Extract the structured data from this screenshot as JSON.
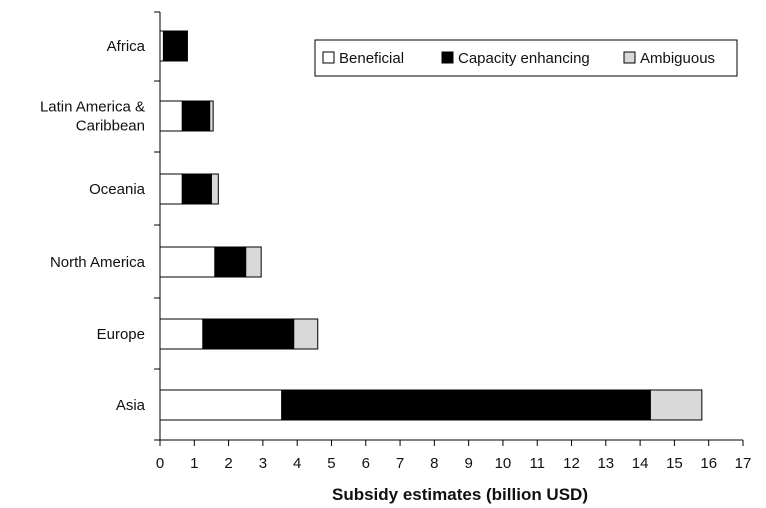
{
  "chart_data": {
    "type": "bar",
    "orientation": "horizontal",
    "stacked": true,
    "categories": [
      "Africa",
      "Latin America & Caribbean",
      "Oceania",
      "North America",
      "Europe",
      "Asia"
    ],
    "category_label_lines": [
      [
        "Africa"
      ],
      [
        "Latin America &",
        "Caribbean"
      ],
      [
        "Oceania"
      ],
      [
        "North America"
      ],
      [
        "Europe"
      ],
      [
        "Asia"
      ]
    ],
    "series": [
      {
        "name": "Beneficial",
        "values": [
          0.1,
          0.65,
          0.65,
          1.6,
          1.25,
          3.55
        ]
      },
      {
        "name": "Capacity enhancing",
        "values": [
          0.7,
          0.8,
          0.85,
          0.9,
          2.65,
          10.75
        ]
      },
      {
        "name": "Ambiguous",
        "values": [
          0.0,
          0.1,
          0.2,
          0.45,
          0.7,
          1.5
        ]
      }
    ],
    "colors": {
      "Beneficial": "#ffffff",
      "Capacity enhancing": "#000000",
      "Ambiguous": "#d9d9d9"
    },
    "xlabel": "Subsidy estimates (billion USD)",
    "ylabel": "",
    "xlim": [
      0,
      17
    ],
    "xticks": [
      0,
      1,
      2,
      3,
      4,
      5,
      6,
      7,
      8,
      9,
      10,
      11,
      12,
      13,
      14,
      15,
      16,
      17
    ],
    "legend_position": "top-right",
    "grid": false
  }
}
